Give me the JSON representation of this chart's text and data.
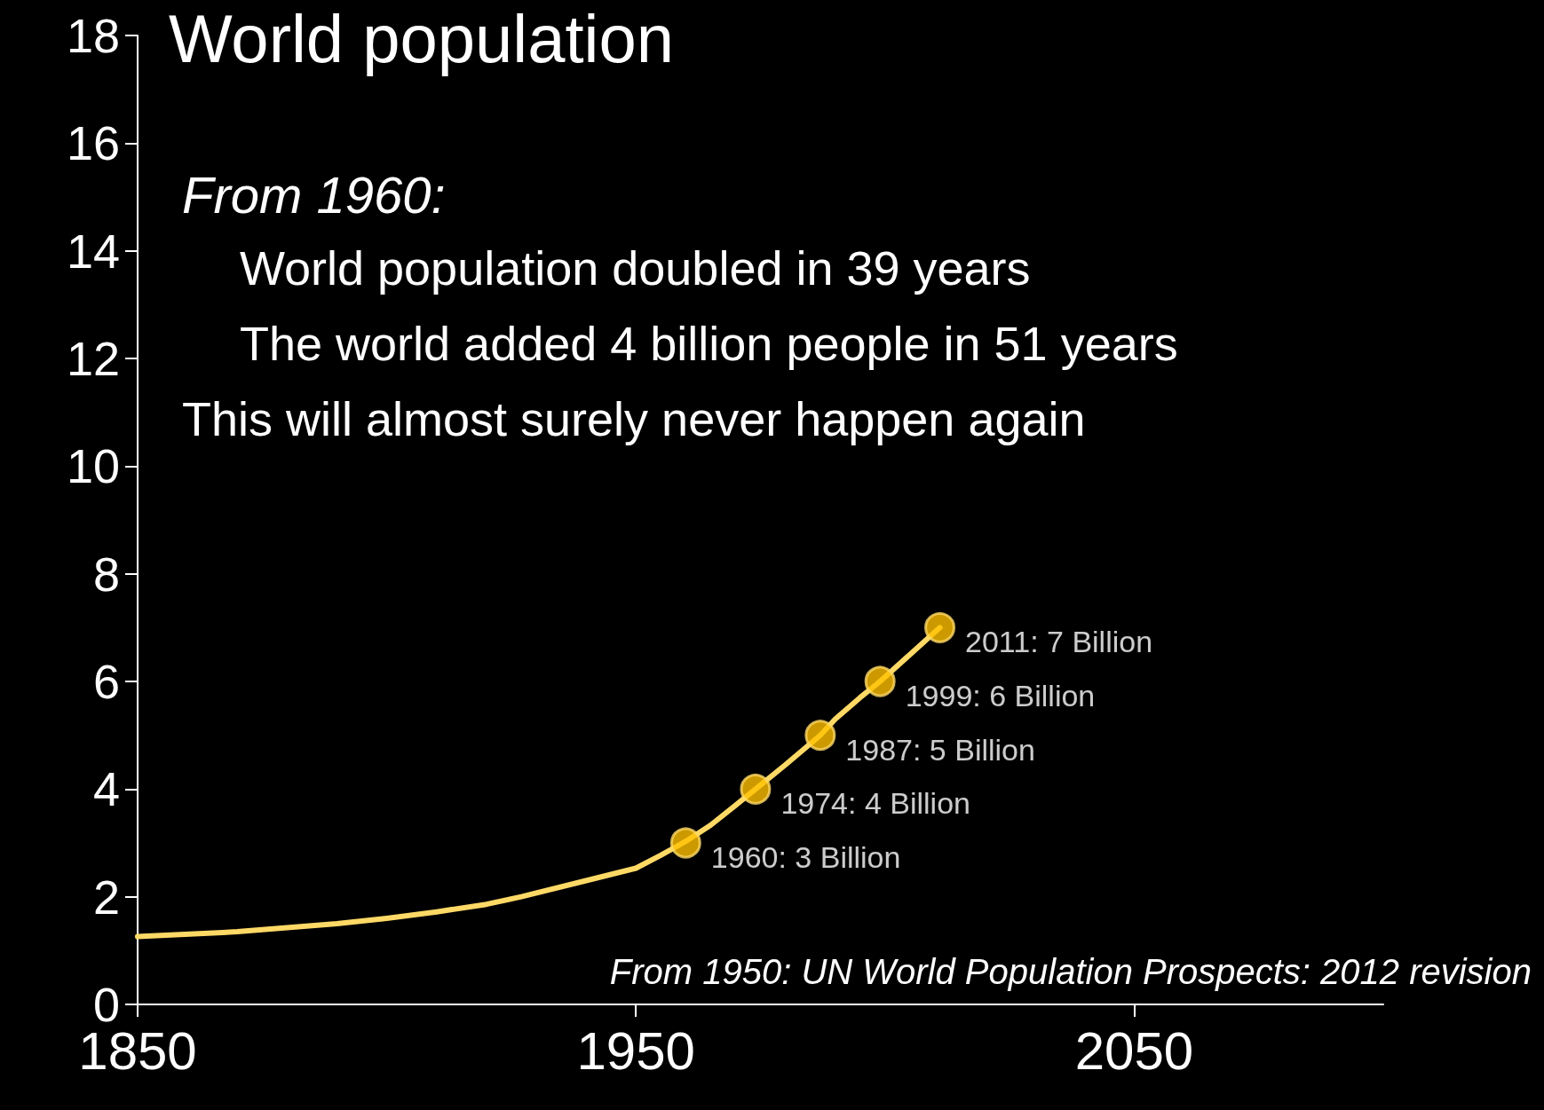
{
  "chart_data": {
    "type": "line",
    "title": "World population",
    "annotations": [
      "From 1960:",
      "World population doubled in 39 years",
      "The world added 4 billion people in 51 years",
      "This will almost surely never happen again",
      "From 1950: UN World Population Prospects: 2012 revision"
    ],
    "series": [
      {
        "color": "#ffd966",
        "x": [
          1850,
          1870,
          1890,
          1900,
          1910,
          1920,
          1927,
          1940,
          1950,
          1955,
          1960,
          1965,
          1970,
          1974,
          1980,
          1987,
          1990,
          1995,
          1999,
          2005,
          2011
        ],
        "values": [
          1.26,
          1.35,
          1.5,
          1.6,
          1.72,
          1.86,
          2.0,
          2.3,
          2.53,
          2.77,
          3.03,
          3.33,
          3.7,
          4.0,
          4.45,
          5.0,
          5.3,
          5.7,
          6.0,
          6.5,
          7.0
        ]
      },
      {
        "type": "scatter",
        "color": "#ffc000",
        "marker": "circle",
        "x": [
          1960,
          1974,
          1987,
          1999,
          2011
        ],
        "values": [
          3,
          4,
          5,
          6,
          7
        ],
        "value_labels": [
          "1960: 3 Billion",
          "1974: 4 Billion",
          "1987: 5 Billion",
          "1999: 6 Billion",
          "2011: 7 Billion"
        ]
      }
    ],
    "xlim": [
      1850,
      2100
    ],
    "xticks": [
      1850,
      1950,
      2050
    ],
    "ylim": [
      0,
      18
    ],
    "yticks": [
      0,
      2,
      4,
      6,
      8,
      10,
      12,
      14,
      16,
      18
    ],
    "grid": false
  }
}
